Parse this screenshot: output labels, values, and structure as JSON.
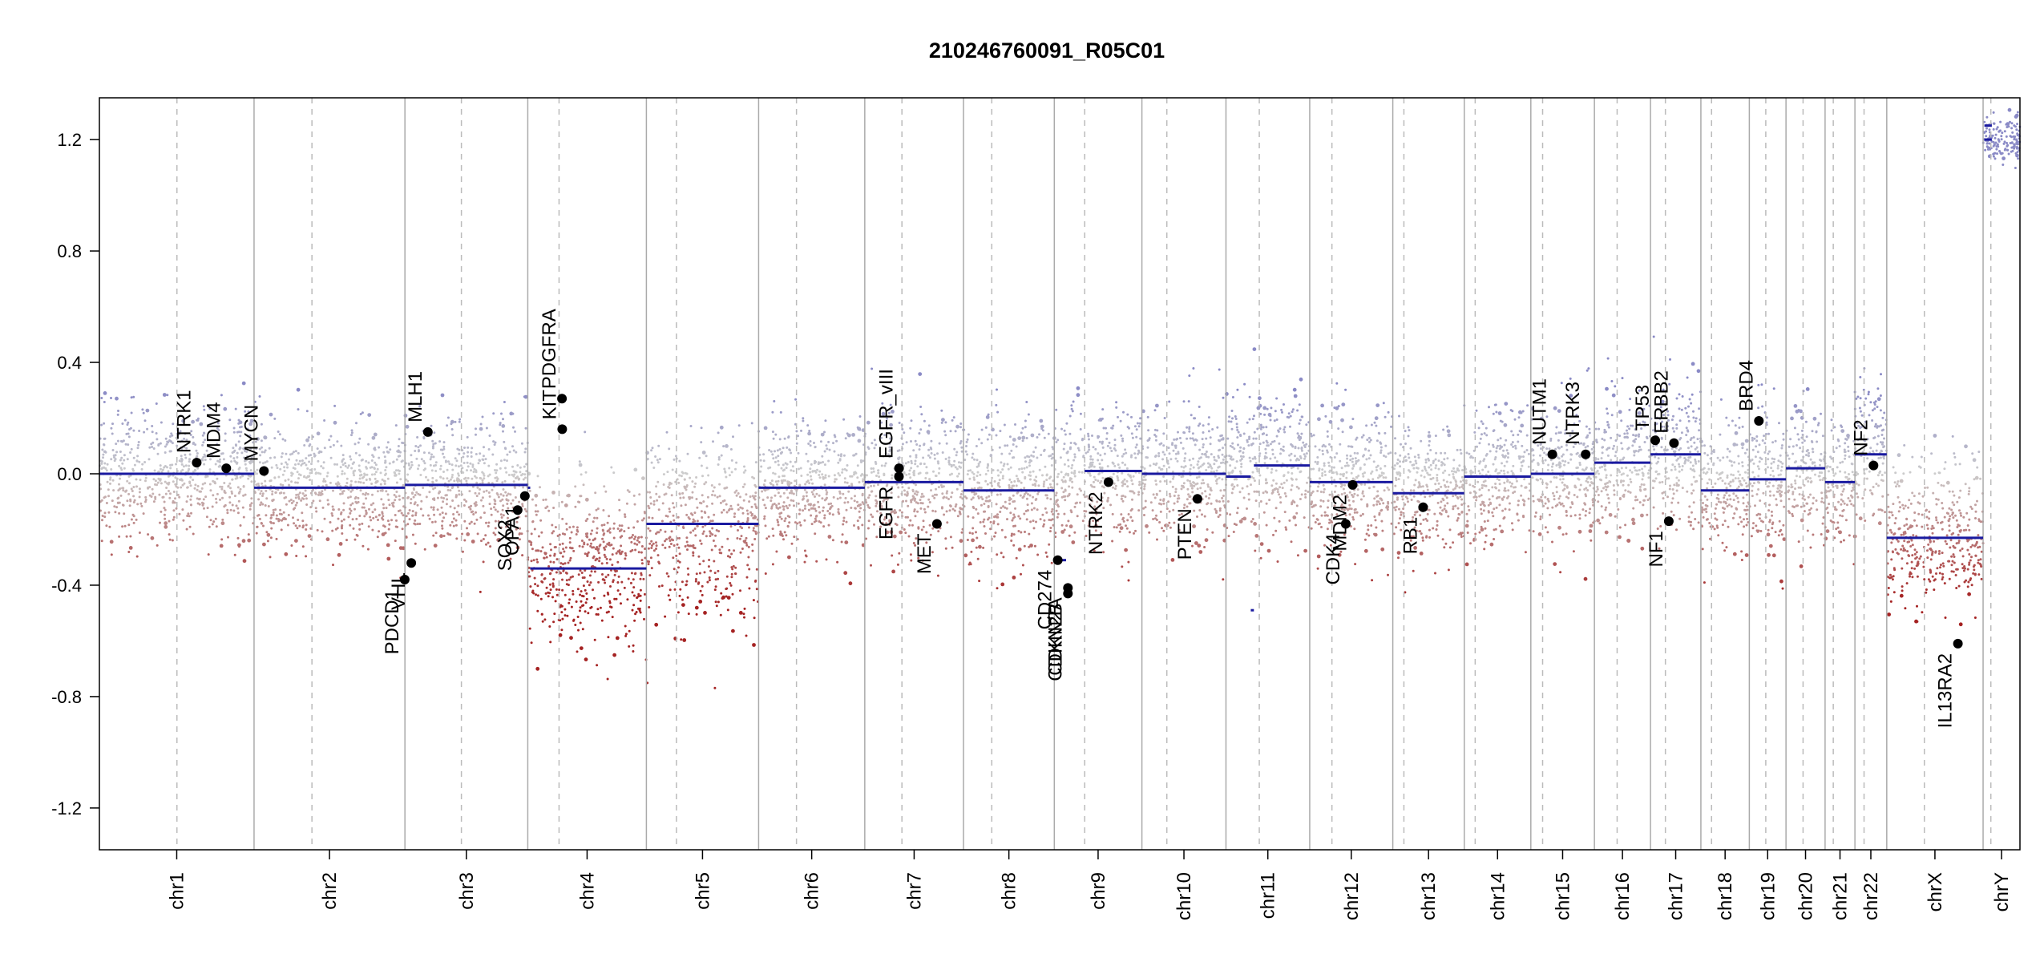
{
  "chart_data": {
    "type": "scatter",
    "title": "210246760091_R05C01",
    "xlabel": "",
    "ylabel": "",
    "ylim": [
      -1.35,
      1.35
    ],
    "yticks": [
      -1.2,
      -0.8,
      -0.4,
      0.0,
      0.4,
      0.8,
      1.2
    ],
    "ytick_labels": [
      "-1.2",
      "-0.8",
      "-0.4",
      "0.0",
      "0.4",
      "0.8",
      "1.2"
    ],
    "chromosomes": [
      {
        "name": "chr1",
        "length": 249.3
      },
      {
        "name": "chr2",
        "length": 243.2
      },
      {
        "name": "chr3",
        "length": 198.0
      },
      {
        "name": "chr4",
        "length": 191.2
      },
      {
        "name": "chr5",
        "length": 180.9
      },
      {
        "name": "chr6",
        "length": 171.1
      },
      {
        "name": "chr7",
        "length": 159.1
      },
      {
        "name": "chr8",
        "length": 146.4
      },
      {
        "name": "chr9",
        "length": 141.2
      },
      {
        "name": "chr10",
        "length": 135.5
      },
      {
        "name": "chr11",
        "length": 135.0
      },
      {
        "name": "chr12",
        "length": 133.9
      },
      {
        "name": "chr13",
        "length": 115.2
      },
      {
        "name": "chr14",
        "length": 107.3
      },
      {
        "name": "chr15",
        "length": 102.5
      },
      {
        "name": "chr16",
        "length": 90.4
      },
      {
        "name": "chr17",
        "length": 81.2
      },
      {
        "name": "chr18",
        "length": 78.1
      },
      {
        "name": "chr19",
        "length": 59.1
      },
      {
        "name": "chr20",
        "length": 63.0
      },
      {
        "name": "chr21",
        "length": 48.1
      },
      {
        "name": "chr22",
        "length": 51.3
      },
      {
        "name": "chrX",
        "length": 155.3
      },
      {
        "name": "chrY",
        "length": 59.4
      }
    ],
    "centromeres_mb": [
      125,
      93.3,
      91,
      50.4,
      48.4,
      61,
      59.9,
      45.6,
      49,
      40.2,
      53.7,
      35.8,
      17.9,
      17.6,
      19,
      36.6,
      24,
      17.2,
      26.5,
      27.5,
      13.2,
      14.7,
      60.6,
      12.5
    ],
    "segments": [
      {
        "chr": "chr1",
        "start": 0,
        "end": 249.3,
        "value": 0.0
      },
      {
        "chr": "chr2",
        "start": 0,
        "end": 243.2,
        "value": -0.05
      },
      {
        "chr": "chr3",
        "start": 0,
        "end": 198.0,
        "value": -0.04
      },
      {
        "chr": "chr4",
        "start": 0,
        "end": 4,
        "value": -0.05
      },
      {
        "chr": "chr4",
        "start": 4,
        "end": 191.2,
        "value": -0.34
      },
      {
        "chr": "chr5",
        "start": 0,
        "end": 180.9,
        "value": -0.18
      },
      {
        "chr": "chr6",
        "start": 0,
        "end": 171.1,
        "value": -0.05
      },
      {
        "chr": "chr7",
        "start": 0,
        "end": 159.1,
        "value": -0.03
      },
      {
        "chr": "chr8",
        "start": 0,
        "end": 146.4,
        "value": -0.06
      },
      {
        "chr": "chr9",
        "start": 0,
        "end": 19,
        "value": -0.31
      },
      {
        "chr": "chr9",
        "start": 19,
        "end": 23,
        "value": -0.4
      },
      {
        "chr": "chr9",
        "start": 49,
        "end": 141.2,
        "value": 0.01
      },
      {
        "chr": "chr10",
        "start": 0,
        "end": 135.5,
        "value": 0.0
      },
      {
        "chr": "chr11",
        "start": 0,
        "end": 40,
        "value": -0.01
      },
      {
        "chr": "chr11",
        "start": 40,
        "end": 45,
        "value": -0.49
      },
      {
        "chr": "chr11",
        "start": 45,
        "end": 135.0,
        "value": 0.03
      },
      {
        "chr": "chr12",
        "start": 0,
        "end": 133.9,
        "value": -0.03
      },
      {
        "chr": "chr13",
        "start": 0,
        "end": 115.2,
        "value": -0.07
      },
      {
        "chr": "chr14",
        "start": 0,
        "end": 107.3,
        "value": -0.01
      },
      {
        "chr": "chr15",
        "start": 0,
        "end": 102.5,
        "value": 0.0
      },
      {
        "chr": "chr16",
        "start": 0,
        "end": 90.4,
        "value": 0.04
      },
      {
        "chr": "chr17",
        "start": 0,
        "end": 81.2,
        "value": 0.07
      },
      {
        "chr": "chr18",
        "start": 0,
        "end": 78.1,
        "value": -0.06
      },
      {
        "chr": "chr19",
        "start": 0,
        "end": 59.1,
        "value": -0.02
      },
      {
        "chr": "chr20",
        "start": 0,
        "end": 63.0,
        "value": 0.02
      },
      {
        "chr": "chr21",
        "start": 0,
        "end": 48.1,
        "value": -0.03
      },
      {
        "chr": "chr22",
        "start": 0,
        "end": 51.3,
        "value": 0.07
      },
      {
        "chr": "chrX",
        "start": 0,
        "end": 155.3,
        "value": -0.23
      },
      {
        "chr": "chrY",
        "start": 2,
        "end": 14,
        "value": 1.2
      },
      {
        "chr": "chrY",
        "start": 2,
        "end": 14,
        "value": 1.25
      }
    ],
    "probe_profile": [
      {
        "chr": "chr1",
        "mean": 0.0,
        "spread": 0.16
      },
      {
        "chr": "chr2",
        "mean": -0.05,
        "spread": 0.15
      },
      {
        "chr": "chr3",
        "mean": -0.04,
        "spread": 0.16
      },
      {
        "chr": "chr4",
        "mean": -0.34,
        "spread": 0.2
      },
      {
        "chr": "chr5",
        "mean": -0.18,
        "spread": 0.22
      },
      {
        "chr": "chr6",
        "mean": -0.05,
        "spread": 0.15
      },
      {
        "chr": "chr7",
        "mean": -0.03,
        "spread": 0.16
      },
      {
        "chr": "chr8",
        "mean": -0.06,
        "spread": 0.16
      },
      {
        "chr": "chr9",
        "mean": 0.0,
        "spread": 0.17
      },
      {
        "chr": "chr10",
        "mean": 0.0,
        "spread": 0.16
      },
      {
        "chr": "chr11",
        "mean": 0.03,
        "spread": 0.16
      },
      {
        "chr": "chr12",
        "mean": -0.03,
        "spread": 0.16
      },
      {
        "chr": "chr13",
        "mean": -0.07,
        "spread": 0.15
      },
      {
        "chr": "chr14",
        "mean": -0.01,
        "spread": 0.16
      },
      {
        "chr": "chr15",
        "mean": 0.0,
        "spread": 0.16
      },
      {
        "chr": "chr16",
        "mean": 0.04,
        "spread": 0.16
      },
      {
        "chr": "chr17",
        "mean": 0.07,
        "spread": 0.17
      },
      {
        "chr": "chr18",
        "mean": -0.06,
        "spread": 0.15
      },
      {
        "chr": "chr19",
        "mean": -0.02,
        "spread": 0.18
      },
      {
        "chr": "chr20",
        "mean": 0.02,
        "spread": 0.16
      },
      {
        "chr": "chr21",
        "mean": -0.03,
        "spread": 0.15
      },
      {
        "chr": "chr22",
        "mean": 0.07,
        "spread": 0.17
      },
      {
        "chr": "chrX",
        "mean": -0.23,
        "spread": 0.17
      },
      {
        "chr": "chrY",
        "mean": 1.2,
        "spread": 0.05
      }
    ],
    "genes": [
      {
        "name": "NTRK1",
        "chr": "chr1",
        "pos": 156.8,
        "value": 0.04,
        "label_side": "above"
      },
      {
        "name": "MDM4",
        "chr": "chr1",
        "pos": 204.5,
        "value": 0.02,
        "label_side": "above"
      },
      {
        "name": "MYCN",
        "chr": "chr2",
        "pos": 15.9,
        "value": 0.01,
        "label_side": "above"
      },
      {
        "name": "PDCD1",
        "chr": "chr2",
        "pos": 242.8,
        "value": -0.38,
        "label_side": "below"
      },
      {
        "name": "VHL",
        "chr": "chr3",
        "pos": 10.2,
        "value": -0.32,
        "label_side": "below"
      },
      {
        "name": "MLH1",
        "chr": "chr3",
        "pos": 37.0,
        "value": 0.15,
        "label_side": "above"
      },
      {
        "name": "SOX2",
        "chr": "chr3",
        "pos": 181.7,
        "value": -0.13,
        "label_side": "below"
      },
      {
        "name": "OPA1",
        "chr": "chr3",
        "pos": 193.3,
        "value": -0.08,
        "label_side": "below"
      },
      {
        "name": "KIT",
        "chr": "chr4",
        "pos": 55.5,
        "value": 0.16,
        "label_side": "above"
      },
      {
        "name": "PDGFRA",
        "chr": "chr4",
        "pos": 55.1,
        "value": 0.27,
        "label_side": "above"
      },
      {
        "name": "EGFR_vIII",
        "chr": "chr7",
        "pos": 55.2,
        "value": 0.02,
        "label_side": "above"
      },
      {
        "name": "EGFR",
        "chr": "chr7",
        "pos": 55.1,
        "value": -0.01,
        "label_side": "below"
      },
      {
        "name": "MET",
        "chr": "chr7",
        "pos": 116.4,
        "value": -0.18,
        "label_side": "below"
      },
      {
        "name": "CD274",
        "chr": "chr9",
        "pos": 5.5,
        "value": -0.31,
        "label_side": "below"
      },
      {
        "name": "CDKN2A",
        "chr": "chr9",
        "pos": 21.9,
        "value": -0.41,
        "label_side": "below"
      },
      {
        "name": "CDKN2B",
        "chr": "chr9",
        "pos": 22.0,
        "value": -0.43,
        "label_side": "below"
      },
      {
        "name": "NTRK2",
        "chr": "chr9",
        "pos": 87.3,
        "value": -0.03,
        "label_side": "below"
      },
      {
        "name": "PTEN",
        "chr": "chr10",
        "pos": 89.6,
        "value": -0.09,
        "label_side": "below"
      },
      {
        "name": "MDM2",
        "chr": "chr12",
        "pos": 69.2,
        "value": -0.04,
        "label_side": "below"
      },
      {
        "name": "CDK4",
        "chr": "chr12",
        "pos": 58.1,
        "value": -0.18,
        "label_side": "below"
      },
      {
        "name": "RB1",
        "chr": "chr13",
        "pos": 48.9,
        "value": -0.12,
        "label_side": "below"
      },
      {
        "name": "NUTM1",
        "chr": "chr15",
        "pos": 34.6,
        "value": 0.07,
        "label_side": "above"
      },
      {
        "name": "NTRK3",
        "chr": "chr15",
        "pos": 88.4,
        "value": 0.07,
        "label_side": "above"
      },
      {
        "name": "TP53",
        "chr": "chr17",
        "pos": 7.6,
        "value": 0.12,
        "label_side": "above"
      },
      {
        "name": "NF1",
        "chr": "chr17",
        "pos": 29.5,
        "value": -0.17,
        "label_side": "below"
      },
      {
        "name": "ERBB2",
        "chr": "chr17",
        "pos": 37.8,
        "value": 0.11,
        "label_side": "above"
      },
      {
        "name": "BRD4",
        "chr": "chr19",
        "pos": 15.4,
        "value": 0.19,
        "label_side": "above"
      },
      {
        "name": "NF2",
        "chr": "chr22",
        "pos": 30.0,
        "value": 0.03,
        "label_side": "above"
      },
      {
        "name": "IL13RA2",
        "chr": "chrX",
        "pos": 114.7,
        "value": -0.61,
        "label_side": "below"
      }
    ],
    "colors": {
      "segment": "#1a1aa0",
      "gain": "#8a8ac6",
      "neutral": "#cccccc",
      "loss": "#a52222",
      "gene_point": "#000000",
      "chr_separator": "#aaaaaa",
      "centromere": "#bbbbbb"
    }
  }
}
